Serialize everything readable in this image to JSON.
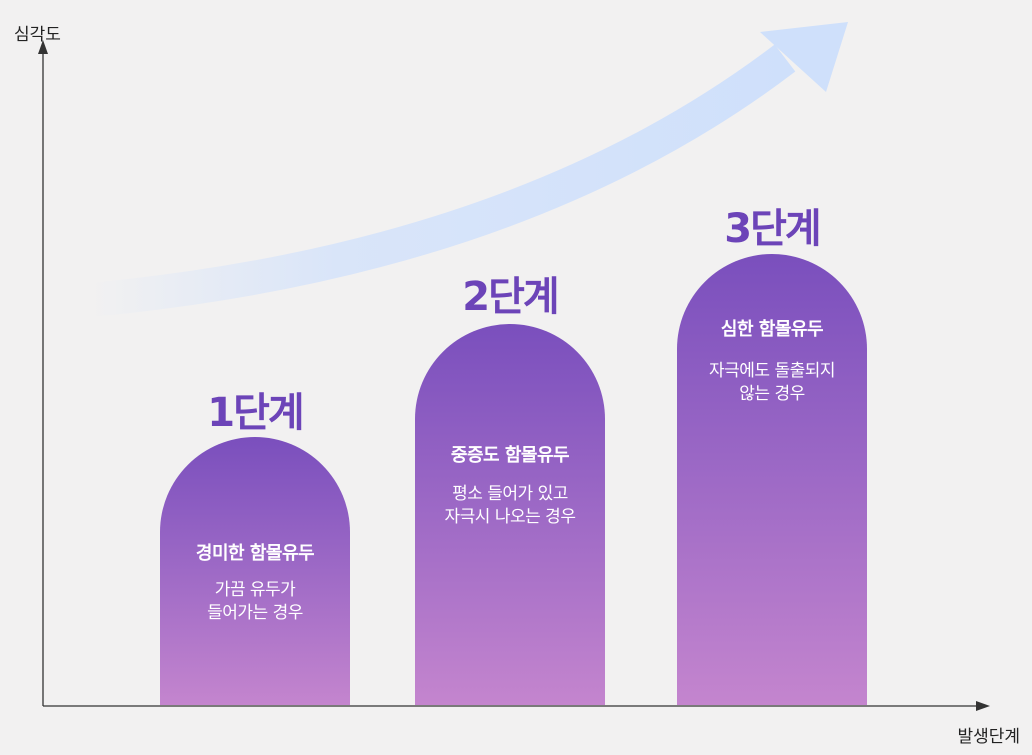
{
  "axes": {
    "y_label": "심각도",
    "x_label": "발생단계"
  },
  "colors": {
    "accent": "#6c44b8",
    "pillar_top": "#7a4fbd",
    "pillar_bottom": "#c485ce",
    "arrow": "#d3e2fb"
  },
  "stages": [
    {
      "label": "1단계",
      "title": "경미한 함몰유두",
      "description": "가끔 유두가\n들어가는 경우"
    },
    {
      "label": "2단계",
      "title": "중증도 함몰유두",
      "description": "평소 들어가 있고\n자극시 나오는 경우"
    },
    {
      "label": "3단계",
      "title": "심한 함몰유두",
      "description": "자극에도 돌출되지\n않는 경우"
    }
  ]
}
